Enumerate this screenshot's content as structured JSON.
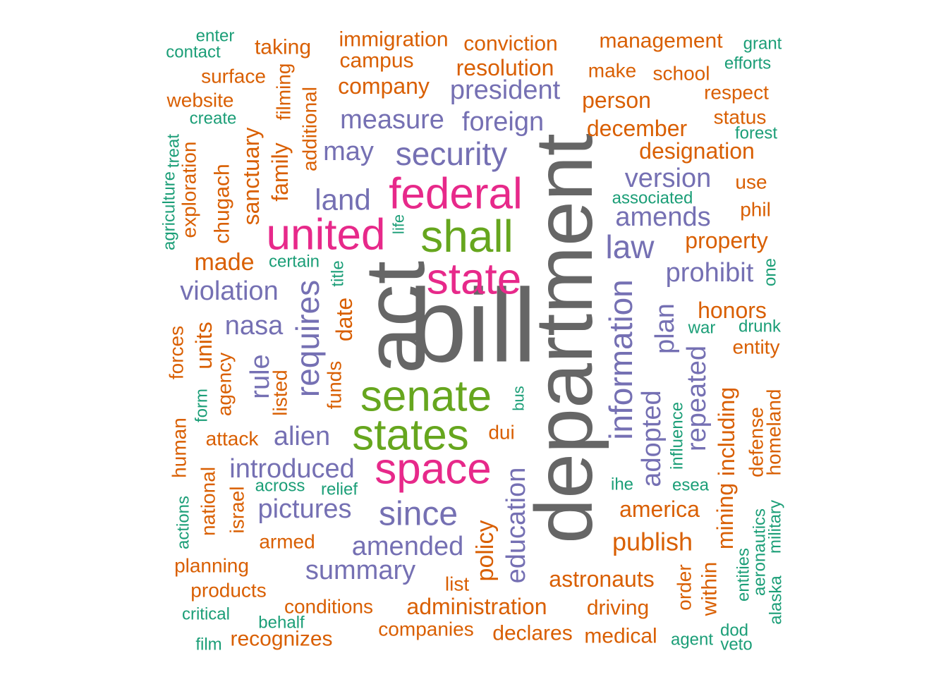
{
  "colors": {
    "gray": "#666666",
    "pink": "#e7298a",
    "green": "#66a61e",
    "purple": "#7570b3",
    "orange": "#d95f02",
    "teal": "#1b9e77"
  },
  "words": [
    {
      "text": "bill",
      "color": "gray"
    },
    {
      "text": "act",
      "color": "gray"
    },
    {
      "text": "department",
      "color": "gray"
    },
    {
      "text": "federal",
      "color": "pink"
    },
    {
      "text": "united",
      "color": "pink"
    },
    {
      "text": "state",
      "color": "pink"
    },
    {
      "text": "space",
      "color": "pink"
    },
    {
      "text": "shall",
      "color": "green"
    },
    {
      "text": "senate",
      "color": "green"
    },
    {
      "text": "states",
      "color": "green"
    },
    {
      "text": "president",
      "color": "purple"
    },
    {
      "text": "measure",
      "color": "purple"
    },
    {
      "text": "foreign",
      "color": "purple"
    },
    {
      "text": "security",
      "color": "purple"
    },
    {
      "text": "may",
      "color": "purple"
    },
    {
      "text": "land",
      "color": "purple"
    },
    {
      "text": "version",
      "color": "purple"
    },
    {
      "text": "amends",
      "color": "purple"
    },
    {
      "text": "law",
      "color": "purple"
    },
    {
      "text": "prohibit",
      "color": "purple"
    },
    {
      "text": "violation",
      "color": "purple"
    },
    {
      "text": "nasa",
      "color": "purple"
    },
    {
      "text": "requires",
      "color": "purple"
    },
    {
      "text": "rule",
      "color": "purple"
    },
    {
      "text": "information",
      "color": "purple"
    },
    {
      "text": "plan",
      "color": "purple"
    },
    {
      "text": "adopted",
      "color": "purple"
    },
    {
      "text": "repeated",
      "color": "purple"
    },
    {
      "text": "alien",
      "color": "purple"
    },
    {
      "text": "introduced",
      "color": "purple"
    },
    {
      "text": "pictures",
      "color": "purple"
    },
    {
      "text": "since",
      "color": "purple"
    },
    {
      "text": "amended",
      "color": "purple"
    },
    {
      "text": "summary",
      "color": "purple"
    },
    {
      "text": "education",
      "color": "purple"
    },
    {
      "text": "immigration",
      "color": "orange"
    },
    {
      "text": "conviction",
      "color": "orange"
    },
    {
      "text": "management",
      "color": "orange"
    },
    {
      "text": "taking",
      "color": "orange"
    },
    {
      "text": "campus",
      "color": "orange"
    },
    {
      "text": "resolution",
      "color": "orange"
    },
    {
      "text": "make",
      "color": "orange"
    },
    {
      "text": "school",
      "color": "orange"
    },
    {
      "text": "surface",
      "color": "orange"
    },
    {
      "text": "company",
      "color": "orange"
    },
    {
      "text": "respect",
      "color": "orange"
    },
    {
      "text": "website",
      "color": "orange"
    },
    {
      "text": "person",
      "color": "orange"
    },
    {
      "text": "status",
      "color": "orange"
    },
    {
      "text": "december",
      "color": "orange"
    },
    {
      "text": "designation",
      "color": "orange"
    },
    {
      "text": "use",
      "color": "orange"
    },
    {
      "text": "phil",
      "color": "orange"
    },
    {
      "text": "property",
      "color": "orange"
    },
    {
      "text": "made",
      "color": "orange"
    },
    {
      "text": "honors",
      "color": "orange"
    },
    {
      "text": "entity",
      "color": "orange"
    },
    {
      "text": "filming",
      "color": "orange"
    },
    {
      "text": "additional",
      "color": "orange"
    },
    {
      "text": "family",
      "color": "orange"
    },
    {
      "text": "sanctuary",
      "color": "orange"
    },
    {
      "text": "chugach",
      "color": "orange"
    },
    {
      "text": "exploration",
      "color": "orange"
    },
    {
      "text": "date",
      "color": "orange"
    },
    {
      "text": "units",
      "color": "orange"
    },
    {
      "text": "forces",
      "color": "orange"
    },
    {
      "text": "agency",
      "color": "orange"
    },
    {
      "text": "listed",
      "color": "orange"
    },
    {
      "text": "funds",
      "color": "orange"
    },
    {
      "text": "attack",
      "color": "orange"
    },
    {
      "text": "dui",
      "color": "orange"
    },
    {
      "text": "including",
      "color": "orange"
    },
    {
      "text": "defense",
      "color": "orange"
    },
    {
      "text": "homeland",
      "color": "orange"
    },
    {
      "text": "human",
      "color": "orange"
    },
    {
      "text": "national",
      "color": "orange"
    },
    {
      "text": "israel",
      "color": "orange"
    },
    {
      "text": "america",
      "color": "orange"
    },
    {
      "text": "mining",
      "color": "orange"
    },
    {
      "text": "armed",
      "color": "orange"
    },
    {
      "text": "publish",
      "color": "orange"
    },
    {
      "text": "planning",
      "color": "orange"
    },
    {
      "text": "policy",
      "color": "orange"
    },
    {
      "text": "astronauts",
      "color": "orange"
    },
    {
      "text": "products",
      "color": "orange"
    },
    {
      "text": "list",
      "color": "orange"
    },
    {
      "text": "order",
      "color": "orange"
    },
    {
      "text": "within",
      "color": "orange"
    },
    {
      "text": "conditions",
      "color": "orange"
    },
    {
      "text": "administration",
      "color": "orange"
    },
    {
      "text": "driving",
      "color": "orange"
    },
    {
      "text": "companies",
      "color": "orange"
    },
    {
      "text": "declares",
      "color": "orange"
    },
    {
      "text": "medical",
      "color": "orange"
    },
    {
      "text": "recognizes",
      "color": "orange"
    },
    {
      "text": "enter",
      "color": "teal"
    },
    {
      "text": "contact",
      "color": "teal"
    },
    {
      "text": "grant",
      "color": "teal"
    },
    {
      "text": "efforts",
      "color": "teal"
    },
    {
      "text": "create",
      "color": "teal"
    },
    {
      "text": "forest",
      "color": "teal"
    },
    {
      "text": "treat",
      "color": "teal"
    },
    {
      "text": "agriculture",
      "color": "teal"
    },
    {
      "text": "associated",
      "color": "teal"
    },
    {
      "text": "life",
      "color": "teal"
    },
    {
      "text": "certain",
      "color": "teal"
    },
    {
      "text": "title",
      "color": "teal"
    },
    {
      "text": "one",
      "color": "teal"
    },
    {
      "text": "war",
      "color": "teal"
    },
    {
      "text": "drunk",
      "color": "teal"
    },
    {
      "text": "form",
      "color": "teal"
    },
    {
      "text": "bus",
      "color": "teal"
    },
    {
      "text": "influence",
      "color": "teal"
    },
    {
      "text": "across",
      "color": "teal"
    },
    {
      "text": "relief",
      "color": "teal"
    },
    {
      "text": "ihe",
      "color": "teal"
    },
    {
      "text": "esea",
      "color": "teal"
    },
    {
      "text": "actions",
      "color": "teal"
    },
    {
      "text": "entities",
      "color": "teal"
    },
    {
      "text": "aeronautics",
      "color": "teal"
    },
    {
      "text": "military",
      "color": "teal"
    },
    {
      "text": "alaska",
      "color": "teal"
    },
    {
      "text": "critical",
      "color": "teal"
    },
    {
      "text": "behalf",
      "color": "teal"
    },
    {
      "text": "film",
      "color": "teal"
    },
    {
      "text": "agent",
      "color": "teal"
    },
    {
      "text": "dod",
      "color": "teal"
    },
    {
      "text": "veto",
      "color": "teal"
    }
  ]
}
